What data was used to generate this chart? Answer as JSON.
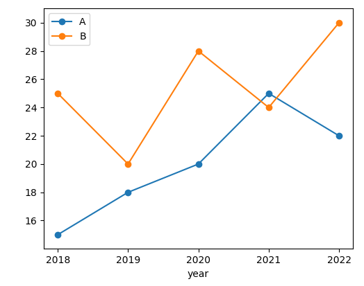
{
  "years": [
    2018,
    2019,
    2020,
    2021,
    2022
  ],
  "A": [
    15,
    18,
    20,
    25,
    22
  ],
  "B": [
    25,
    20,
    28,
    24,
    30
  ],
  "color_A": "#1f77b4",
  "color_B": "#ff7f0e",
  "xlabel": "year",
  "ylabel": "",
  "ylim": [
    14,
    31
  ],
  "yticks": [
    16,
    18,
    20,
    22,
    24,
    26,
    28,
    30
  ],
  "legend_labels": [
    "A",
    "B"
  ],
  "marker": "o",
  "figsize": [
    5.24,
    4.13
  ],
  "dpi": 100
}
